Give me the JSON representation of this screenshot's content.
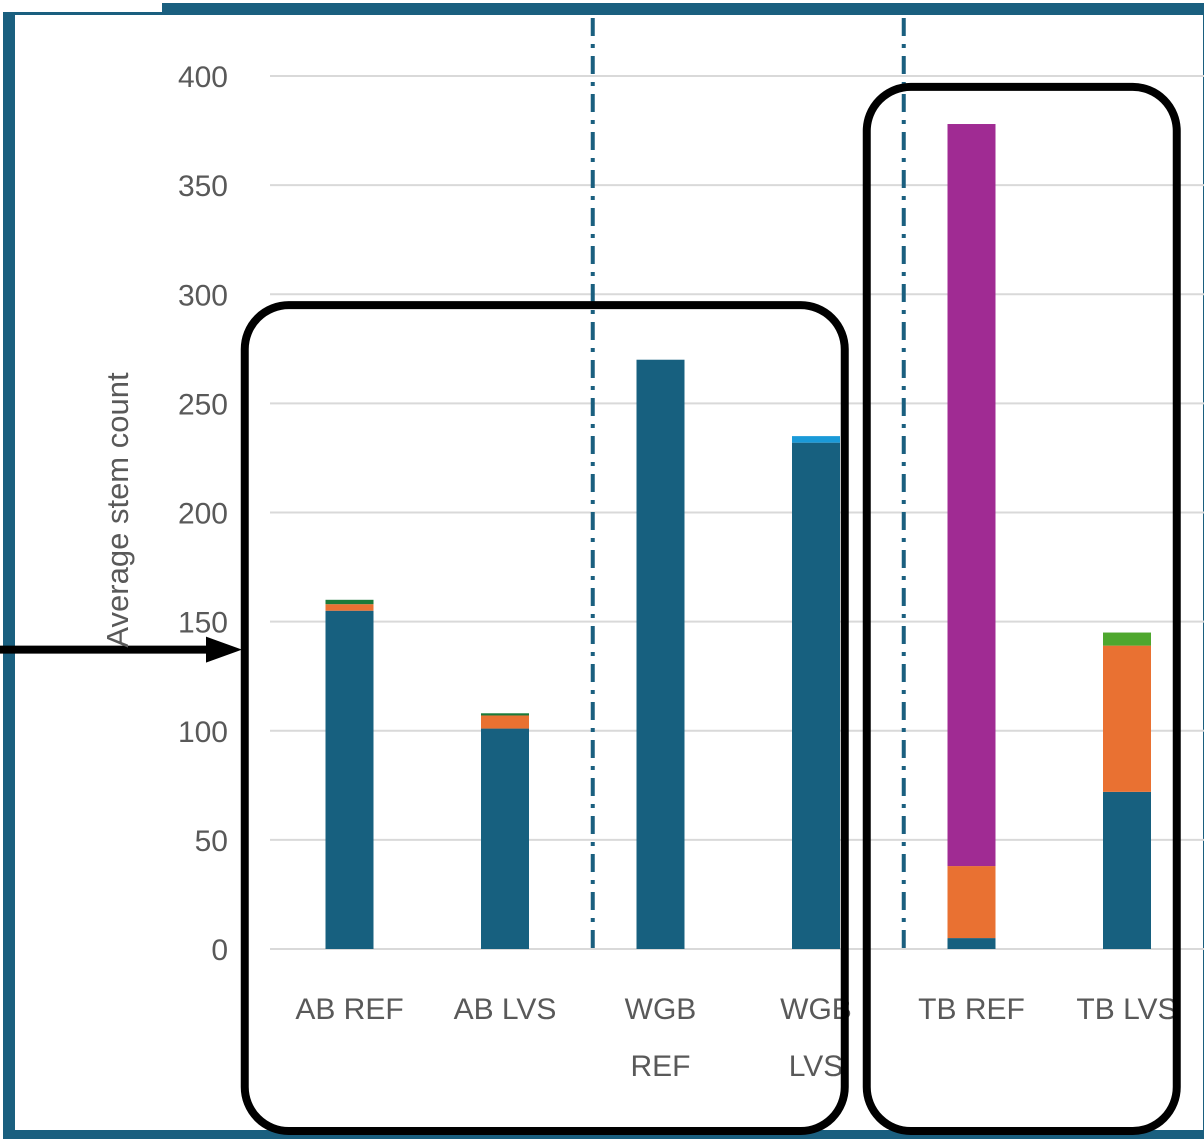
{
  "chart_data": {
    "type": "bar",
    "stacked": true,
    "xlabel": "",
    "ylabel": "Average stem count",
    "ylim": [
      0,
      400
    ],
    "yticks": [
      0,
      50,
      100,
      150,
      200,
      250,
      300,
      350,
      400
    ],
    "grid": true,
    "legend": "none",
    "categories": [
      [
        "AB REF"
      ],
      [
        "AB LVS"
      ],
      [
        "WGB",
        "REF"
      ],
      [
        "WGB",
        "LVS"
      ],
      [
        "TB REF"
      ],
      [
        "TB LVS"
      ]
    ],
    "series": [
      {
        "color": "#17607f",
        "values": [
          155,
          101,
          270,
          232,
          5,
          72
        ]
      },
      {
        "color": "#e97132",
        "values": [
          3,
          6,
          0,
          0,
          33,
          67
        ]
      },
      {
        "color": "#1b7a3a",
        "values": [
          2,
          1,
          0,
          0,
          0,
          0
        ]
      },
      {
        "color": "#1a9ad8",
        "values": [
          0,
          0,
          0,
          3,
          0,
          0
        ]
      },
      {
        "color": "#a02b93",
        "values": [
          0,
          0,
          0,
          0,
          340,
          0
        ]
      },
      {
        "color": "#4ea72e",
        "values": [
          0,
          0,
          0,
          0,
          0,
          6
        ]
      }
    ],
    "annotations": {
      "group_boxes": [
        [
          0,
          3
        ],
        [
          4,
          5
        ]
      ],
      "divider_lines": [
        [
          1,
          2
        ],
        [
          3,
          4
        ]
      ],
      "arrow_target_value": 150
    }
  },
  "colors": {
    "frame": "#1a5f7f",
    "grid": "#d9d9d9",
    "text": "#595959",
    "box": "#000000"
  }
}
